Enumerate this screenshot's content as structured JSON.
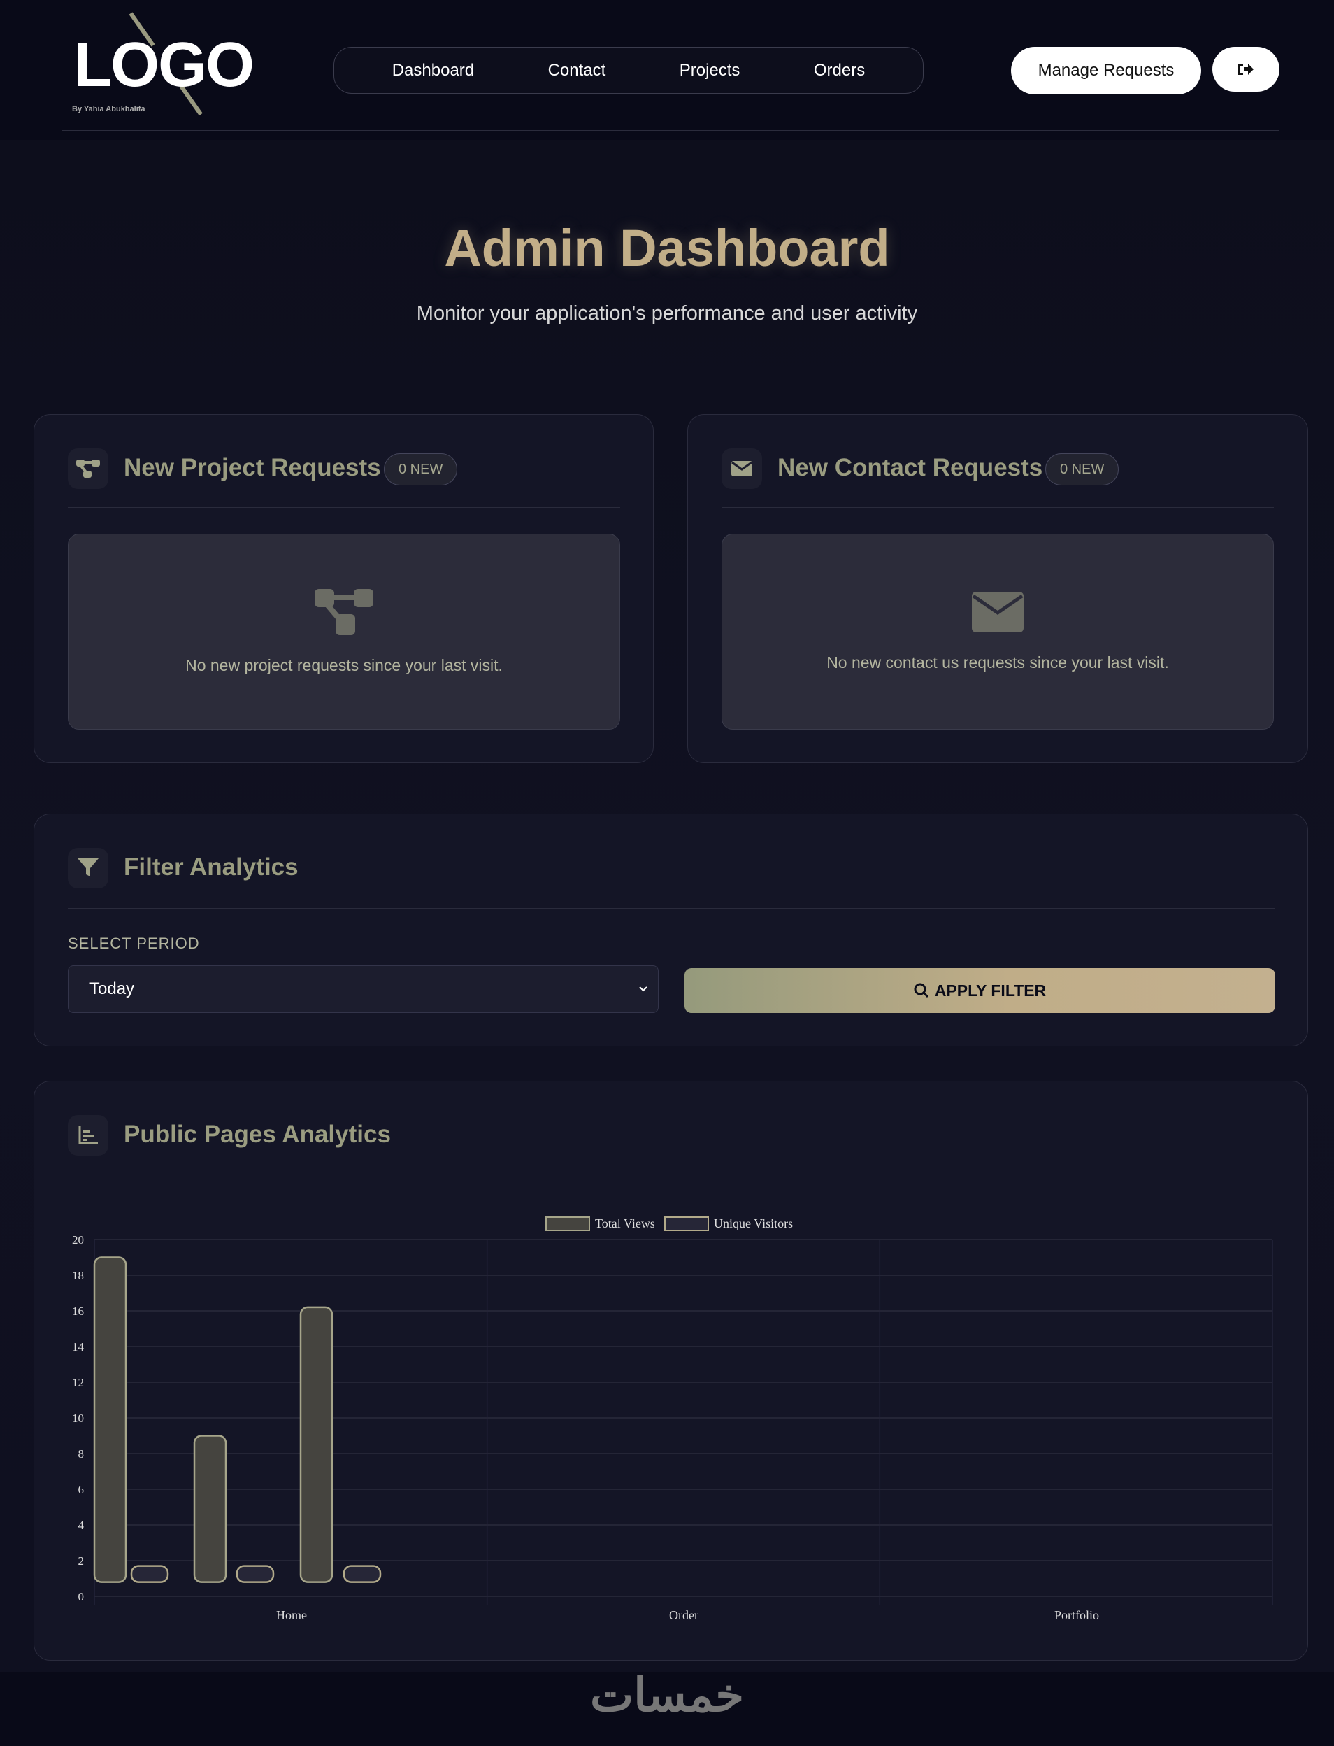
{
  "header": {
    "logo": "LOGO",
    "logo_sub": "By Yahia Abukhalifa",
    "nav": [
      "Dashboard",
      "Contact",
      "Projects",
      "Orders"
    ],
    "manage_requests": "Manage Requests",
    "logout_icon": "sign-out-icon"
  },
  "hero": {
    "title": "Admin Dashboard",
    "subtitle": "Monitor your application's performance and user activity"
  },
  "project_card": {
    "title": "New Project Requests",
    "badge": "0 NEW",
    "empty": "No new project requests since your last visit.",
    "icon": "project-diagram-icon"
  },
  "contact_card": {
    "title": "New Contact Requests",
    "badge": "0 NEW",
    "empty": "No new contact us requests since your last visit.",
    "icon": "envelope-icon"
  },
  "filter": {
    "title": "Filter Analytics",
    "label": "SELECT PERIOD",
    "selected": "Today",
    "apply": "APPLY FILTER",
    "icon": "filter-icon"
  },
  "analytics": {
    "title": "Public Pages Analytics",
    "icon": "chart-bar-icon"
  },
  "chart_data": {
    "type": "bar",
    "categories": [
      "Home",
      "Order",
      "Portfolio"
    ],
    "series": [
      {
        "name": "Total Views",
        "ranges": [
          [
            0.8,
            19
          ],
          [
            0.8,
            9
          ],
          [
            0.8,
            16.2
          ]
        ],
        "color": "#45443f",
        "border": "#a6a58a"
      },
      {
        "name": "Unique Visitors",
        "ranges": [
          [
            0.8,
            1.7
          ],
          [
            0.8,
            1.7
          ],
          [
            0.8,
            1.7
          ]
        ],
        "color": "#262637",
        "border": "#b2aa8a"
      }
    ],
    "ylim": [
      0,
      20
    ],
    "yticks": [
      "0",
      "2",
      "4",
      "6",
      "8",
      "10",
      "12",
      "14",
      "16",
      "18",
      "20"
    ],
    "grid": true,
    "legend": "top"
  },
  "footer": {
    "watermark": "خمسات"
  }
}
